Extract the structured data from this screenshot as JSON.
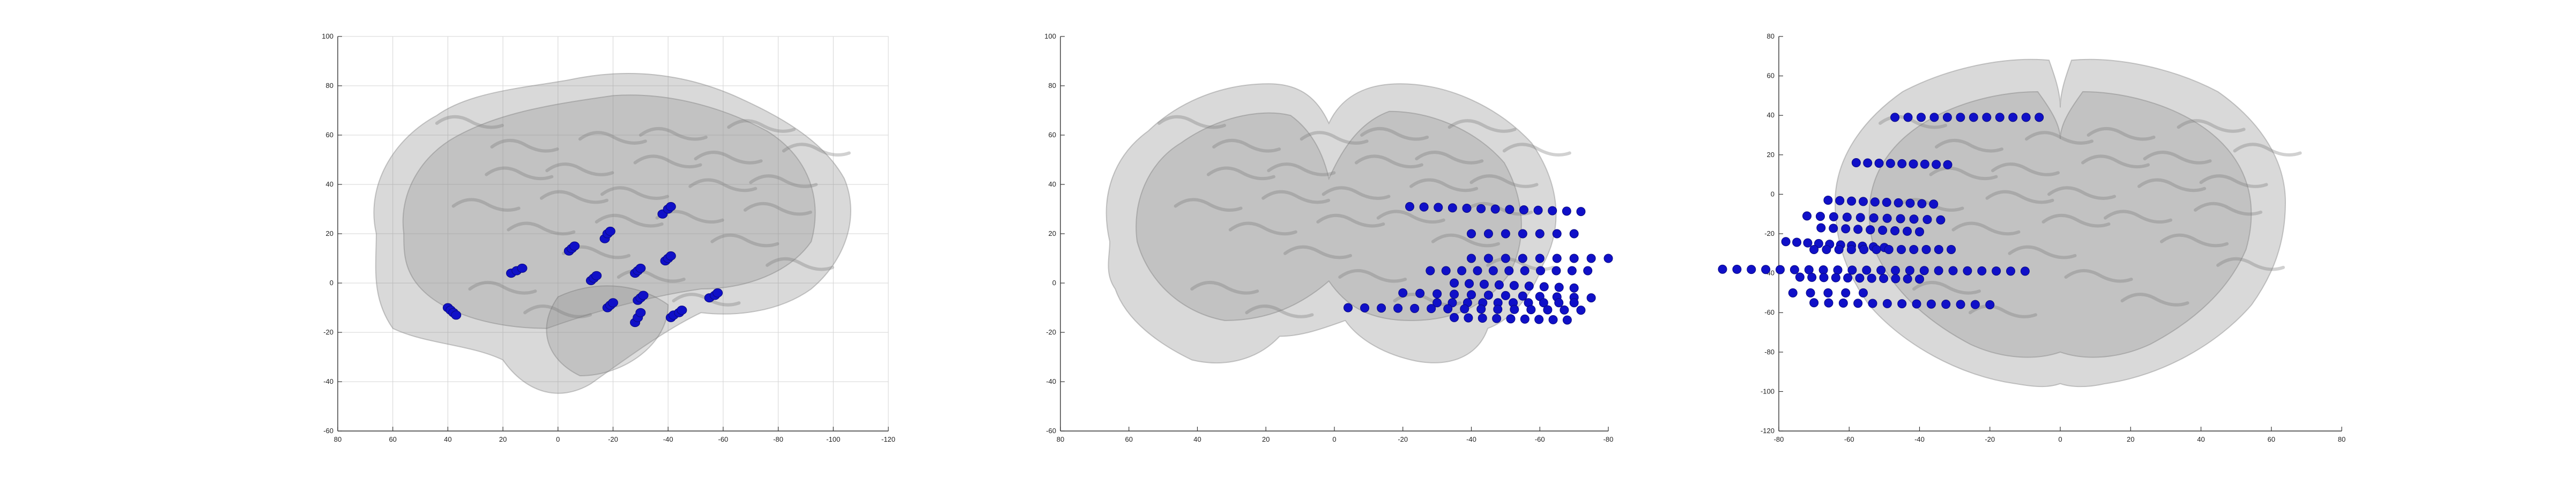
{
  "chart_data": [
    {
      "type": "scatter",
      "title": "",
      "xlabel": "",
      "ylabel": "",
      "xlim": [
        80,
        -120
      ],
      "ylim": [
        -60,
        100
      ],
      "x_ticks": [
        80,
        60,
        40,
        20,
        0,
        -20,
        -40,
        -60,
        -80,
        -100,
        -120
      ],
      "y_ticks": [
        100,
        80,
        60,
        40,
        20,
        0,
        -20,
        -40,
        -60
      ],
      "x_tick_labels": [
        "80",
        "60",
        "40",
        "20",
        "0",
        "-20",
        "-40",
        "-60",
        "-80",
        "-100",
        "-120"
      ],
      "y_tick_labels": [
        "100",
        "80",
        "60",
        "40",
        "20",
        "0",
        "-20",
        "-40",
        "-60"
      ],
      "grid": true,
      "marker_color": "#1010c8",
      "brain_color": "#8a8a8a",
      "series": [
        {
          "marker": "elongated",
          "points": [
            {
              "x": 40,
              "y": -10
            },
            {
              "x": 39,
              "y": -11
            },
            {
              "x": 38,
              "y": -12
            },
            {
              "x": 37,
              "y": -13
            },
            {
              "x": 17,
              "y": 4
            },
            {
              "x": 15,
              "y": 5
            },
            {
              "x": 13,
              "y": 6
            },
            {
              "x": -4,
              "y": 13
            },
            {
              "x": -5,
              "y": 14
            },
            {
              "x": -6,
              "y": 15
            },
            {
              "x": -17,
              "y": 18
            },
            {
              "x": -18,
              "y": 20
            },
            {
              "x": -19,
              "y": 21
            },
            {
              "x": -38,
              "y": 28
            },
            {
              "x": -40,
              "y": 30
            },
            {
              "x": -41,
              "y": 31
            },
            {
              "x": -12,
              "y": 1
            },
            {
              "x": -13,
              "y": 2
            },
            {
              "x": -14,
              "y": 3
            },
            {
              "x": -28,
              "y": 4
            },
            {
              "x": -29,
              "y": 5
            },
            {
              "x": -30,
              "y": 6
            },
            {
              "x": -39,
              "y": 9
            },
            {
              "x": -40,
              "y": 10
            },
            {
              "x": -41,
              "y": 11
            },
            {
              "x": -18,
              "y": -10
            },
            {
              "x": -19,
              "y": -9
            },
            {
              "x": -20,
              "y": -8
            },
            {
              "x": -29,
              "y": -7
            },
            {
              "x": -30,
              "y": -6
            },
            {
              "x": -31,
              "y": -5
            },
            {
              "x": -28,
              "y": -16
            },
            {
              "x": -29,
              "y": -14
            },
            {
              "x": -30,
              "y": -12
            },
            {
              "x": -41,
              "y": -14
            },
            {
              "x": -42,
              "y": -13
            },
            {
              "x": -44,
              "y": -12
            },
            {
              "x": -45,
              "y": -11
            },
            {
              "x": -55,
              "y": -6
            },
            {
              "x": -57,
              "y": -5
            },
            {
              "x": -58,
              "y": -4
            }
          ]
        }
      ]
    },
    {
      "type": "scatter",
      "title": "",
      "xlabel": "",
      "ylabel": "",
      "xlim": [
        80,
        -80
      ],
      "ylim": [
        -60,
        100
      ],
      "x_ticks": [
        80,
        60,
        40,
        20,
        0,
        -20,
        -40,
        -60,
        -80
      ],
      "y_ticks": [
        100,
        80,
        60,
        40,
        20,
        0,
        -20,
        -40,
        -60
      ],
      "x_tick_labels": [
        "80",
        "60",
        "40",
        "20",
        "0",
        "-20",
        "-40",
        "-60",
        "-80"
      ],
      "y_tick_labels": [
        "100",
        "80",
        "60",
        "40",
        "20",
        "0",
        "-20",
        "-40",
        "-60"
      ],
      "grid": false,
      "marker_color": "#1010c8",
      "brain_color": "#8a8a8a",
      "series": [
        {
          "marker": "dot",
          "rows": [
            {
              "y_start": 31,
              "y_end": 29,
              "x_from": -22,
              "x_to": -72,
              "count": 13
            },
            {
              "y_start": 20,
              "y_end": 20,
              "x_from": -40,
              "x_to": -70,
              "count": 7
            },
            {
              "y_start": 10,
              "y_end": 10,
              "x_from": -40,
              "x_to": -80,
              "count": 9
            },
            {
              "y_start": 5,
              "y_end": 5,
              "x_from": -28,
              "x_to": -74,
              "count": 11
            },
            {
              "y_start": 0,
              "y_end": -2,
              "x_from": -35,
              "x_to": -70,
              "count": 9
            },
            {
              "y_start": -4,
              "y_end": -6,
              "x_from": -20,
              "x_to": -75,
              "count": 12
            },
            {
              "y_start": -8,
              "y_end": -8,
              "x_from": -30,
              "x_to": -70,
              "count": 10
            },
            {
              "y_start": -10,
              "y_end": -11,
              "x_from": -4,
              "x_to": -72,
              "count": 15
            },
            {
              "y_start": -14,
              "y_end": -15,
              "x_from": -35,
              "x_to": -68,
              "count": 9
            }
          ]
        }
      ]
    },
    {
      "type": "scatter",
      "title": "",
      "xlabel": "",
      "ylabel": "",
      "xlim": [
        -80,
        80
      ],
      "ylim": [
        -120,
        80
      ],
      "x_ticks": [
        -80,
        -60,
        -40,
        -20,
        0,
        20,
        40,
        60,
        80
      ],
      "y_ticks": [
        80,
        60,
        40,
        20,
        0,
        -20,
        -40,
        -60,
        -80,
        -100,
        -120
      ],
      "x_tick_labels": [
        "-80",
        "-60",
        "-40",
        "-20",
        "0",
        "20",
        "40",
        "60",
        "80"
      ],
      "y_tick_labels": [
        "80",
        "60",
        "40",
        "20",
        "0",
        "-20",
        "-40",
        "-60",
        "-80",
        "-100",
        "-120"
      ],
      "grid": false,
      "marker_color": "#1010c8",
      "brain_color": "#8a8a8a",
      "series": [
        {
          "marker": "dot",
          "rows": [
            {
              "y_start": 39,
              "y_end": 39,
              "x_from": -47,
              "x_to": -6,
              "count": 12
            },
            {
              "y_start": 16,
              "y_end": 15,
              "x_from": -58,
              "x_to": -32,
              "count": 9
            },
            {
              "y_start": -3,
              "y_end": -5,
              "x_from": -66,
              "x_to": -36,
              "count": 10
            },
            {
              "y_start": -11,
              "y_end": -13,
              "x_from": -72,
              "x_to": -34,
              "count": 11
            },
            {
              "y_start": -17,
              "y_end": -19,
              "x_from": -68,
              "x_to": -40,
              "count": 9
            },
            {
              "y_start": -24,
              "y_end": -27,
              "x_from": -78,
              "x_to": -50,
              "count": 10
            },
            {
              "y_start": -28,
              "y_end": -28,
              "x_from": -70,
              "x_to": -31,
              "count": 12
            },
            {
              "y_start": -38,
              "y_end": -39,
              "x_from": -96,
              "x_to": -10,
              "count": 22
            },
            {
              "y_start": -42,
              "y_end": -43,
              "x_from": -74,
              "x_to": -40,
              "count": 11
            },
            {
              "y_start": -50,
              "y_end": -50,
              "x_from": -76,
              "x_to": -56,
              "count": 5
            },
            {
              "y_start": -55,
              "y_end": -56,
              "x_from": -70,
              "x_to": -20,
              "count": 13
            }
          ]
        }
      ]
    }
  ]
}
